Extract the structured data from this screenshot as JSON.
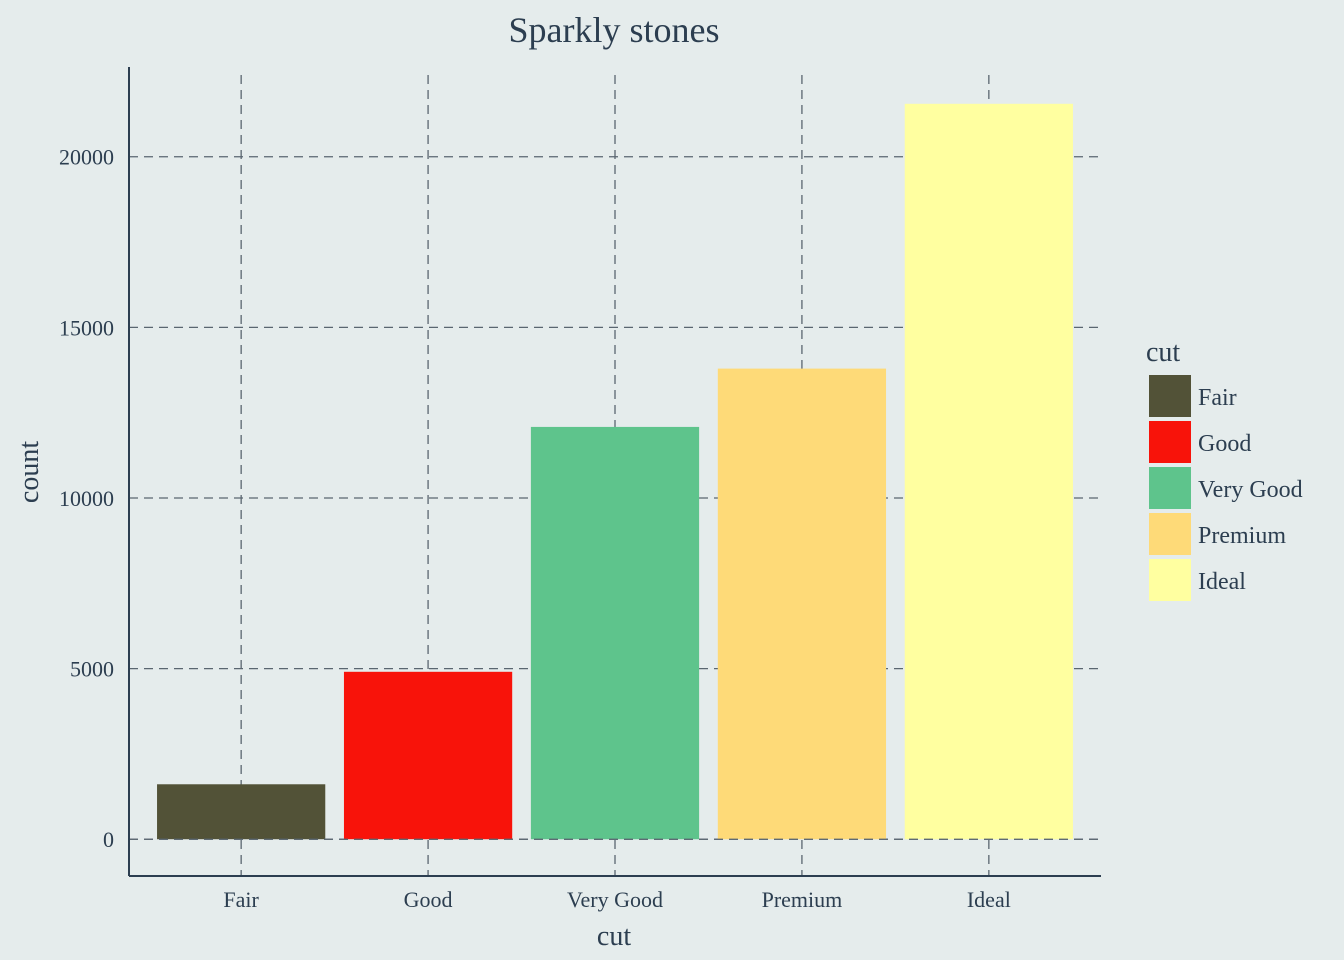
{
  "chart_data": {
    "type": "bar",
    "title": "Sparkly stones",
    "xlabel": "cut",
    "ylabel": "count",
    "categories": [
      "Fair",
      "Good",
      "Very Good",
      "Premium",
      "Ideal"
    ],
    "values": [
      1610,
      4906,
      12082,
      13791,
      21551
    ],
    "colors": [
      "#525237",
      "#f8130a",
      "#5ec48c",
      "#feda78",
      "#ffffa0"
    ],
    "ylim": [
      -1078,
      22629
    ],
    "y_ticks": [
      0,
      5000,
      10000,
      15000,
      20000
    ],
    "grid": true,
    "grid_style": "dashed",
    "legend": {
      "title": "cut",
      "position": "right",
      "items": [
        "Fair",
        "Good",
        "Very Good",
        "Premium",
        "Ideal"
      ]
    },
    "colors_theme": {
      "background": "#e5ecec",
      "axis": "#2c3e50",
      "grid": "#5a6670",
      "text": "#2c3e50"
    }
  }
}
